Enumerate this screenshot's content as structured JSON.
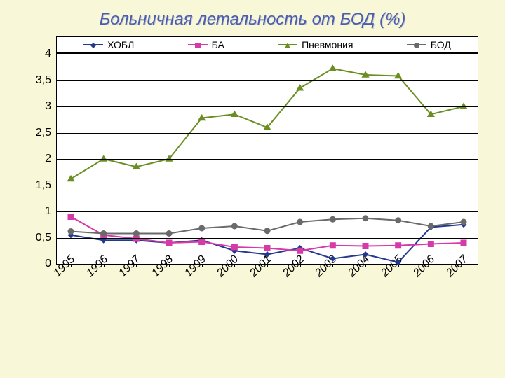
{
  "title": "Больничная летальность от БОД (%)",
  "chart": {
    "type": "line",
    "background_color": "#f8f8d8",
    "plot_bg": "#ffffff",
    "grid_color": "#000000",
    "ylim": [
      0,
      4
    ],
    "ytick_step": 0.5,
    "y_labels": [
      "0",
      "0,5",
      "1",
      "1,5",
      "2",
      "2,5",
      "3",
      "3,5",
      "4"
    ],
    "categories": [
      "1995",
      "1996",
      "1997",
      "1998",
      "1999",
      "2000",
      "2001",
      "2002",
      "2003",
      "2004",
      "2005",
      "2006",
      "2007"
    ],
    "x_label_fontsize": 16,
    "x_label_italic": true,
    "title_fontsize": 24,
    "title_color": "#4a5db0",
    "series": [
      {
        "name": "ХОБЛ",
        "label": "ХОБЛ",
        "color": "#23398f",
        "marker": "diamond",
        "values": [
          0.55,
          0.45,
          0.45,
          0.4,
          0.45,
          0.25,
          0.18,
          0.3,
          0.1,
          0.18,
          0.03,
          0.7,
          0.75
        ]
      },
      {
        "name": "БА",
        "label": "БА",
        "color": "#d63aa8",
        "marker": "square",
        "values": [
          0.9,
          0.55,
          0.48,
          0.4,
          0.42,
          0.32,
          0.3,
          0.25,
          0.35,
          0.34,
          0.35,
          0.38,
          0.4
        ]
      },
      {
        "name": "Пневмония",
        "label": "Пневмония",
        "color": "#6b8e23",
        "marker": "triangle",
        "values": [
          1.62,
          2.0,
          1.85,
          2.0,
          2.78,
          2.85,
          2.6,
          3.35,
          3.72,
          3.6,
          3.58,
          2.85,
          3.0
        ]
      },
      {
        "name": "БОД",
        "label": "БОД",
        "color": "#6a6a6a",
        "marker": "circle",
        "values": [
          0.62,
          0.58,
          0.58,
          0.58,
          0.68,
          0.72,
          0.63,
          0.8,
          0.85,
          0.87,
          0.83,
          0.72,
          0.8
        ]
      }
    ],
    "line_width": 2,
    "marker_size": 9
  }
}
